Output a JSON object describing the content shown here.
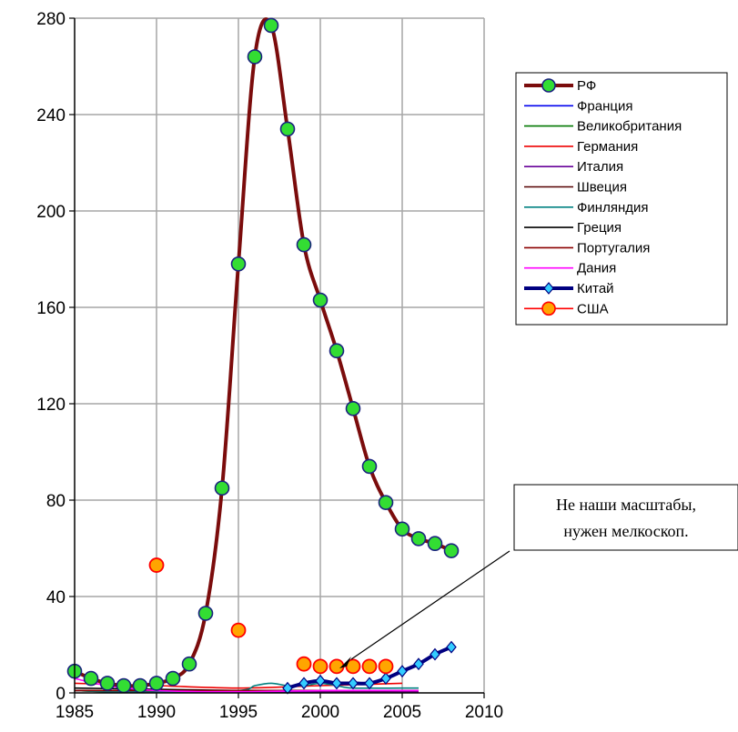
{
  "chart_data": {
    "type": "line",
    "title": "",
    "xlabel": "",
    "ylabel": "",
    "xlim": [
      1985,
      2010
    ],
    "ylim": [
      0,
      280
    ],
    "x_ticks": [
      1985,
      1990,
      1995,
      2000,
      2005,
      2010
    ],
    "y_ticks": [
      0,
      40,
      80,
      120,
      160,
      200,
      240,
      280
    ],
    "grid": true,
    "legend_position": "right",
    "series": [
      {
        "name": "РФ",
        "color": "#7b0c0c",
        "marker": "circle",
        "marker_color": "#33dd33",
        "x": [
          1985,
          1986,
          1987,
          1988,
          1989,
          1990,
          1991,
          1992,
          1993,
          1994,
          1995,
          1996,
          1997,
          1998,
          1999,
          2000,
          2001,
          2002,
          2003,
          2004,
          2005,
          2006,
          2007,
          2008
        ],
        "y": [
          9,
          6,
          4,
          3,
          3,
          4,
          6,
          12,
          33,
          85,
          178,
          264,
          277,
          234,
          186,
          163,
          142,
          118,
          94,
          79,
          68,
          64,
          62,
          59
        ]
      },
      {
        "name": "Франция",
        "color": "#0000ee",
        "marker": "none",
        "x": [
          1985,
          1990,
          1995,
          2000,
          2005,
          2006
        ],
        "y": [
          1,
          0.5,
          0.5,
          1,
          1,
          1
        ]
      },
      {
        "name": "Великобритания",
        "color": "#007700",
        "marker": "none",
        "x": [
          1985,
          1987,
          1990,
          1995,
          2000,
          2005,
          2006
        ],
        "y": [
          1,
          0.5,
          0.5,
          0.5,
          1,
          0.5,
          0.5
        ]
      },
      {
        "name": "Германия",
        "color": "#ee0000",
        "marker": "none",
        "x": [
          1985,
          1990,
          1995,
          2000,
          2005
        ],
        "y": [
          4,
          3,
          2,
          3,
          4
        ]
      },
      {
        "name": "Италия",
        "color": "#660099",
        "marker": "none",
        "x": [
          1985,
          1990,
          1995,
          2000,
          2005,
          2006
        ],
        "y": [
          1,
          0.5,
          0.5,
          0.5,
          0.5,
          0.5
        ]
      },
      {
        "name": "Швеция",
        "color": "#550000",
        "marker": "none",
        "x": [
          1985,
          1990,
          1995,
          2000,
          2005,
          2006
        ],
        "y": [
          1,
          1,
          1,
          1,
          1,
          1
        ]
      },
      {
        "name": "Финляндия",
        "color": "#008080",
        "marker": "none",
        "x": [
          1985,
          1987,
          1990,
          1995,
          1996,
          1997,
          1998,
          1999,
          2000,
          2001,
          2002,
          2005,
          2006
        ],
        "y": [
          1,
          0.5,
          0.5,
          1,
          3,
          4,
          3,
          3,
          4,
          3,
          2,
          2,
          2
        ]
      },
      {
        "name": "Греция",
        "color": "#000000",
        "marker": "none",
        "x": [
          1985,
          1990,
          1995,
          2000,
          2005,
          2006
        ],
        "y": [
          2,
          1.5,
          1,
          1,
          1,
          1
        ]
      },
      {
        "name": "Португалия",
        "color": "#8b0000",
        "marker": "none",
        "x": [
          1985,
          1990,
          1995,
          2000,
          2005,
          2006
        ],
        "y": [
          1,
          1,
          1,
          1,
          1,
          1
        ]
      },
      {
        "name": "Дания",
        "color": "#ff00ff",
        "marker": "none",
        "x": [
          1985,
          1987,
          1990,
          1995,
          2000,
          2005,
          2006
        ],
        "y": [
          6,
          3,
          1,
          0.5,
          1,
          1,
          1
        ]
      },
      {
        "name": "Китай",
        "color": "#000080",
        "marker": "diamond",
        "marker_color": "#33ccff",
        "x": [
          1998,
          1999,
          2000,
          2001,
          2002,
          2003,
          2004,
          2005,
          2006,
          2007,
          2008
        ],
        "y": [
          2,
          4,
          5,
          4,
          4,
          4,
          6,
          9,
          12,
          16,
          19
        ]
      },
      {
        "name": "США",
        "color": "#ff0000",
        "marker": "circle",
        "marker_color": "#ffa500",
        "line": false,
        "x": [
          1990,
          1995,
          1999,
          2000,
          2001,
          2002,
          2003,
          2004
        ],
        "y": [
          53,
          26,
          12,
          11,
          11,
          11,
          11,
          11
        ]
      }
    ],
    "annotation": {
      "lines": [
        "Не наши масштабы,",
        "нужен мелкоскоп."
      ],
      "target": {
        "x": 2001.5,
        "y": 12
      }
    }
  }
}
